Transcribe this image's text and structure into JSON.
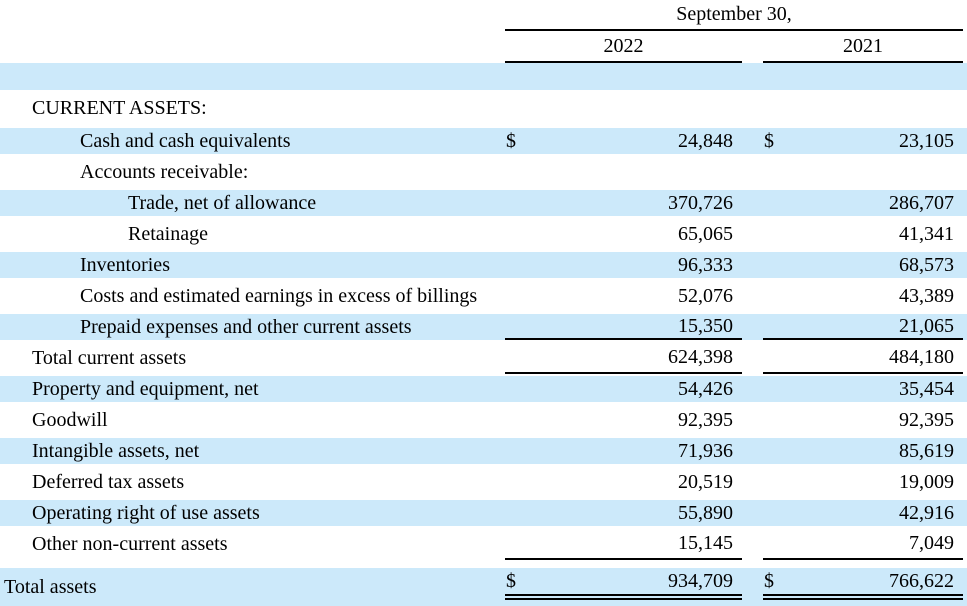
{
  "colors": {
    "stripe": "#cce9fa",
    "rule": "#000000",
    "text": "#000000"
  },
  "currency_symbol": "$",
  "header": {
    "date_label": "September 30,",
    "columns": [
      "2022",
      "2021"
    ]
  },
  "rows": [
    {
      "label": "CURRENT ASSETS:",
      "indent": 1,
      "stripe": false,
      "dollar": false,
      "amounts": [
        "",
        ""
      ]
    },
    {
      "label": "Cash and cash equivalents",
      "indent": 2,
      "stripe": true,
      "dollar": true,
      "amounts": [
        "24,848",
        "23,105"
      ]
    },
    {
      "label": "Accounts receivable:",
      "indent": 2,
      "stripe": false,
      "dollar": false,
      "amounts": [
        "",
        ""
      ]
    },
    {
      "label": "Trade, net of allowance",
      "indent": 3,
      "stripe": true,
      "dollar": false,
      "amounts": [
        "370,726",
        "286,707"
      ]
    },
    {
      "label": "Retainage",
      "indent": 3,
      "stripe": false,
      "dollar": false,
      "amounts": [
        "65,065",
        "41,341"
      ]
    },
    {
      "label": "Inventories",
      "indent": 2,
      "stripe": true,
      "dollar": false,
      "amounts": [
        "96,333",
        "68,573"
      ]
    },
    {
      "label": "Costs and estimated earnings in excess of billings",
      "indent": 2,
      "stripe": false,
      "dollar": false,
      "amounts": [
        "52,076",
        "43,389"
      ]
    },
    {
      "label": "Prepaid expenses and other current assets",
      "indent": 2,
      "stripe": true,
      "dollar": false,
      "amounts": [
        "15,350",
        "21,065"
      ],
      "rule": "single"
    },
    {
      "label": "Total current assets",
      "indent": 1,
      "stripe": false,
      "dollar": false,
      "amounts": [
        "624,398",
        "484,180"
      ],
      "rule": "single"
    },
    {
      "label": "Property and equipment, net",
      "indent": 1,
      "stripe": true,
      "dollar": false,
      "amounts": [
        "54,426",
        "35,454"
      ]
    },
    {
      "label": "Goodwill",
      "indent": 1,
      "stripe": false,
      "dollar": false,
      "amounts": [
        "92,395",
        "92,395"
      ]
    },
    {
      "label": "Intangible assets, net",
      "indent": 1,
      "stripe": true,
      "dollar": false,
      "amounts": [
        "71,936",
        "85,619"
      ]
    },
    {
      "label": "Deferred tax assets",
      "indent": 1,
      "stripe": false,
      "dollar": false,
      "amounts": [
        "20,519",
        "19,009"
      ]
    },
    {
      "label": "Operating right of use assets",
      "indent": 1,
      "stripe": true,
      "dollar": false,
      "amounts": [
        "55,890",
        "42,916"
      ]
    },
    {
      "label": "Other non-current assets",
      "indent": 1,
      "stripe": false,
      "dollar": false,
      "amounts": [
        "15,145",
        "7,049"
      ],
      "rule": "single"
    },
    {
      "label": "Total assets",
      "indent": 0,
      "stripe": true,
      "dollar": true,
      "amounts": [
        "934,709",
        "766,622"
      ],
      "rule": "double",
      "total": true
    }
  ]
}
